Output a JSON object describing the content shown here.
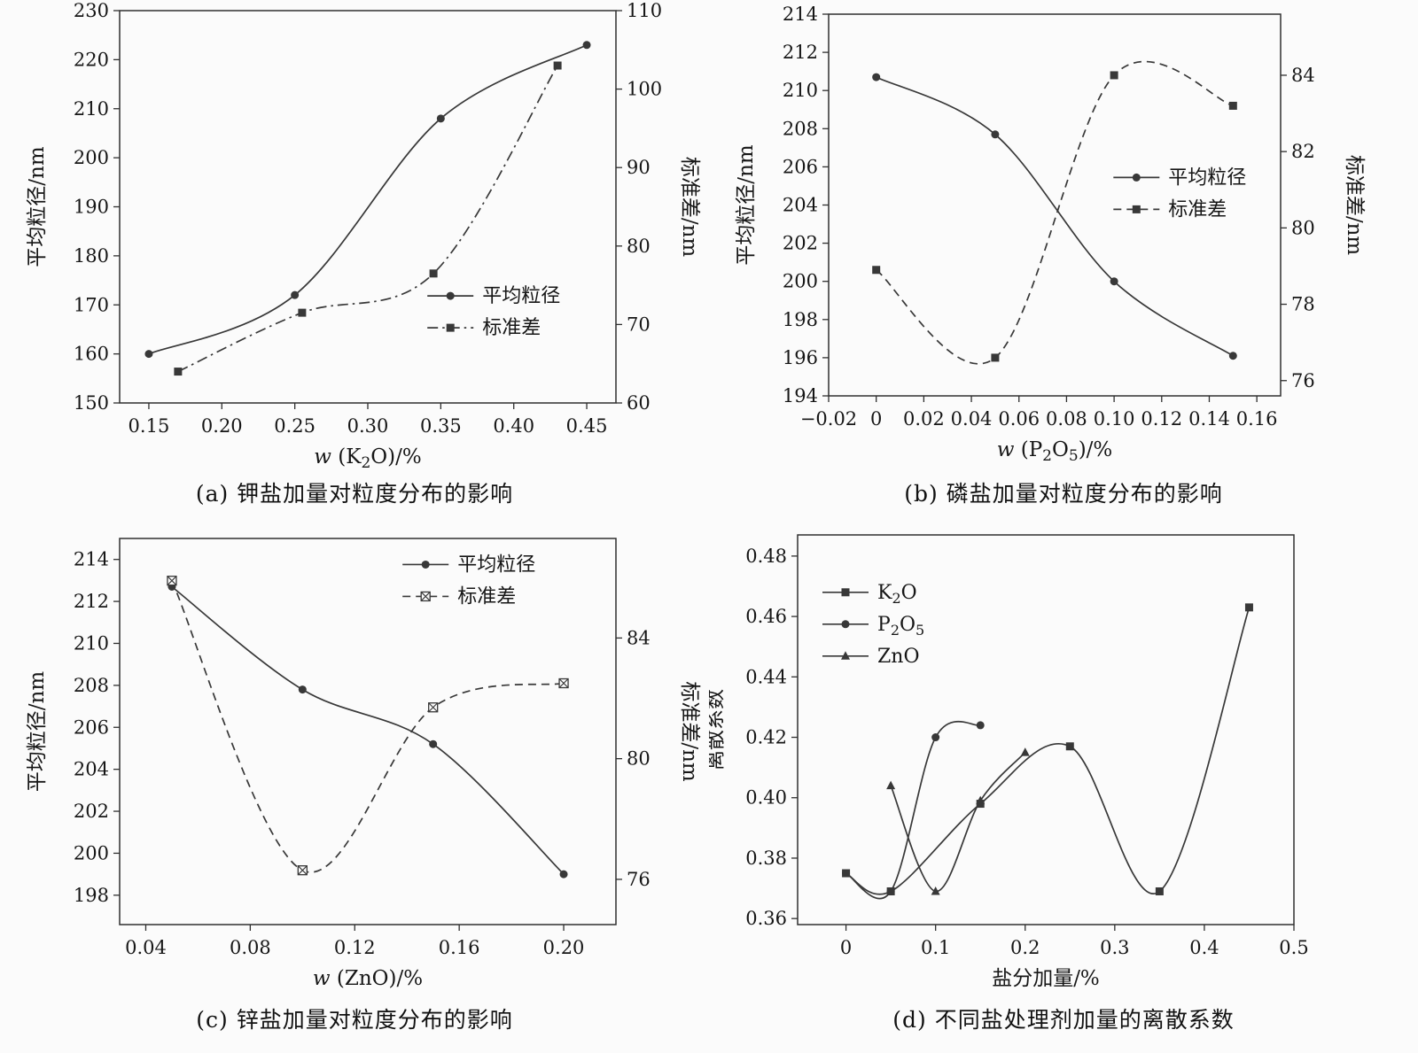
{
  "colors": {
    "ink": "#383838",
    "axis": "#2f2f2f",
    "text": "#161616",
    "background": "#fbfbfb"
  },
  "chart_data": [
    {
      "id": "a",
      "type": "line",
      "caption": "(a) 钾盐加量对粒度分布的影响",
      "xlabel": "w (K₂O)/%",
      "x_axis": {
        "min": 0.13,
        "max": 0.47,
        "ticks": [
          0.15,
          0.2,
          0.25,
          0.3,
          0.35,
          0.4,
          0.45
        ],
        "labels": [
          "0.15",
          "0.20",
          "0.25",
          "0.30",
          "0.35",
          "0.40",
          "0.45"
        ]
      },
      "left_axis": {
        "label": "平均粒径/nm",
        "min": 150,
        "max": 230,
        "ticks": [
          150,
          160,
          170,
          180,
          190,
          200,
          210,
          220,
          230
        ],
        "labels": [
          "150",
          "160",
          "170",
          "180",
          "190",
          "200",
          "210",
          "220",
          "230"
        ]
      },
      "right_axis": {
        "label": "标准差/nm",
        "min": 60,
        "max": 110,
        "ticks": [
          60,
          70,
          80,
          90,
          100,
          110
        ],
        "labels": [
          "60",
          "70",
          "80",
          "90",
          "100",
          "110"
        ]
      },
      "legend": {
        "x": 0.62,
        "y": 0.7
      },
      "series": [
        {
          "name": "平均粒径",
          "axis": "left",
          "line": "solid",
          "marker": "circle",
          "x": [
            0.15,
            0.25,
            0.35,
            0.45
          ],
          "y": [
            160,
            172,
            208,
            223
          ]
        },
        {
          "name": "标准差",
          "axis": "right",
          "line": "dashdot",
          "marker": "square",
          "x": [
            0.17,
            0.255,
            0.345,
            0.43
          ],
          "y": [
            64,
            71.5,
            76.5,
            103
          ]
        }
      ]
    },
    {
      "id": "b",
      "type": "line",
      "caption": "(b) 磷盐加量对粒度分布的影响",
      "xlabel": "w (P₂O₅)/%",
      "x_axis": {
        "min": -0.02,
        "max": 0.17,
        "ticks": [
          -0.02,
          0,
          0.02,
          0.04,
          0.06,
          0.08,
          0.1,
          0.12,
          0.14,
          0.16
        ],
        "labels": [
          "−0.02",
          "0",
          "0.02",
          "0.04",
          "0.06",
          "0.08",
          "0.10",
          "0.12",
          "0.14",
          "0.16"
        ]
      },
      "left_axis": {
        "label": "平均粒径/nm",
        "min": 194,
        "max": 214,
        "ticks": [
          194,
          196,
          198,
          200,
          202,
          204,
          206,
          208,
          210,
          212,
          214
        ],
        "labels": [
          "194",
          "196",
          "198",
          "200",
          "202",
          "204",
          "206",
          "208",
          "210",
          "212",
          "214"
        ]
      },
      "right_axis": {
        "label": "标准差/nm",
        "min": 75.6,
        "max": 85.6,
        "ticks": [
          76,
          78,
          80,
          82,
          84
        ],
        "labels": [
          "76",
          "78",
          "80",
          "82",
          "84"
        ]
      },
      "legend": {
        "x": 0.63,
        "y": 0.4
      },
      "series": [
        {
          "name": "平均粒径",
          "axis": "left",
          "line": "solid",
          "marker": "circle",
          "x": [
            0,
            0.05,
            0.1,
            0.15
          ],
          "y": [
            210.7,
            207.7,
            200.0,
            196.1
          ]
        },
        {
          "name": "标准差",
          "axis": "right",
          "line": "dashed",
          "marker": "square",
          "x": [
            0,
            0.05,
            0.1,
            0.15
          ],
          "y": [
            78.9,
            76.6,
            84.0,
            83.2
          ]
        }
      ]
    },
    {
      "id": "c",
      "type": "line",
      "caption": "(c) 锌盐加量对粒度分布的影响",
      "xlabel": "w (ZnO)/%",
      "x_axis": {
        "min": 0.03,
        "max": 0.22,
        "ticks": [
          0.04,
          0.08,
          0.12,
          0.16,
          0.2
        ],
        "labels": [
          "0.04",
          "0.08",
          "0.12",
          "0.16",
          "0.20"
        ]
      },
      "left_axis": {
        "label": "平均粒径/nm",
        "min": 196.6,
        "max": 215,
        "ticks": [
          198,
          200,
          202,
          204,
          206,
          208,
          210,
          212,
          214
        ],
        "labels": [
          "198",
          "200",
          "202",
          "204",
          "206",
          "208",
          "210",
          "212",
          "214"
        ]
      },
      "right_axis": {
        "label": "标准差/nm",
        "min": 74.5,
        "max": 87.3,
        "ticks": [
          76,
          80,
          84
        ],
        "labels": [
          "76",
          "80",
          "84"
        ]
      },
      "legend": {
        "x": 0.57,
        "y": 0.04
      },
      "series": [
        {
          "name": "平均粒径",
          "axis": "left",
          "line": "solid",
          "marker": "circle",
          "x": [
            0.05,
            0.1,
            0.15,
            0.2
          ],
          "y": [
            212.7,
            207.8,
            205.2,
            199.0
          ]
        },
        {
          "name": "标准差",
          "axis": "right",
          "line": "dashed",
          "marker": "square-x",
          "x": [
            0.05,
            0.1,
            0.15,
            0.2
          ],
          "y": [
            85.9,
            76.3,
            81.7,
            82.5
          ]
        }
      ]
    },
    {
      "id": "d",
      "type": "line",
      "caption": "(d) 不同盐处理剂加量的离散系数",
      "xlabel": "盐分加量/%",
      "x_axis": {
        "min": -0.054,
        "max": 0.5,
        "ticks": [
          0,
          0.1,
          0.2,
          0.3,
          0.4,
          0.5
        ],
        "labels": [
          "0",
          "0.1",
          "0.2",
          "0.3",
          "0.4",
          "0.5"
        ]
      },
      "left_axis": {
        "label": "离散系数",
        "min": 0.358,
        "max": 0.487,
        "ticks": [
          0.36,
          0.38,
          0.4,
          0.42,
          0.44,
          0.46,
          0.48
        ],
        "labels": [
          "0.36",
          "0.38",
          "0.40",
          "0.42",
          "0.44",
          "0.46",
          "0.48"
        ]
      },
      "right_axis": null,
      "legend": {
        "x": 0.05,
        "y": 0.12
      },
      "series": [
        {
          "name": "K₂O",
          "axis": "left",
          "line": "solid",
          "marker": "square",
          "x": [
            0,
            0.05,
            0.15,
            0.25,
            0.35,
            0.45
          ],
          "y": [
            0.375,
            0.369,
            0.398,
            0.417,
            0.369,
            0.463
          ]
        },
        {
          "name": "P₂O₅",
          "axis": "left",
          "line": "solid",
          "marker": "circle",
          "x": [
            0,
            0.05,
            0.1,
            0.15
          ],
          "y": [
            0.375,
            0.369,
            0.42,
            0.424
          ]
        },
        {
          "name": "ZnO",
          "axis": "left",
          "line": "solid",
          "marker": "triangle",
          "x": [
            0.05,
            0.1,
            0.15,
            0.2
          ],
          "y": [
            0.404,
            0.369,
            0.399,
            0.415
          ]
        }
      ]
    }
  ]
}
